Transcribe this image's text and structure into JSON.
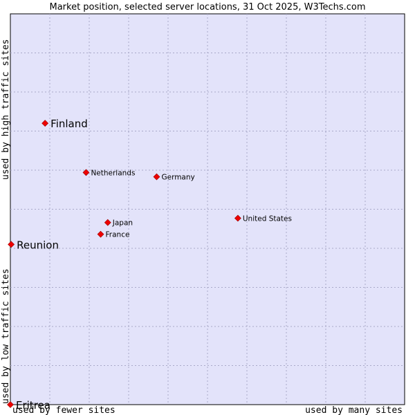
{
  "chart_data": {
    "type": "scatter",
    "title": "Market position, selected server locations, 31 Oct 2025, W3Techs.com",
    "xlabel_left": "used by fewer sites",
    "xlabel_right": "used by many sites",
    "ylabel_top": "used by high traffic sites",
    "ylabel_bottom": "used by low traffic sites",
    "xlim": [
      0,
      100
    ],
    "ylim": [
      0,
      100
    ],
    "grid": true,
    "plot_bg": "#e3e3fa",
    "grid_color": "#a8a8c8",
    "point_color": "#ee0000",
    "points": [
      {
        "label": "Finland",
        "x": 8.8,
        "y": 72.0,
        "emphasis": true
      },
      {
        "label": "Netherlands",
        "x": 19.2,
        "y": 59.4,
        "emphasis": false
      },
      {
        "label": "Germany",
        "x": 37.1,
        "y": 58.3,
        "emphasis": false
      },
      {
        "label": "United States",
        "x": 57.7,
        "y": 47.7,
        "emphasis": false
      },
      {
        "label": "Japan",
        "x": 24.7,
        "y": 46.6,
        "emphasis": false
      },
      {
        "label": "France",
        "x": 22.9,
        "y": 43.6,
        "emphasis": false
      },
      {
        "label": "Reunion",
        "x": 0.2,
        "y": 41.0,
        "emphasis": true
      },
      {
        "label": "Eritrea",
        "x": 0.0,
        "y": 0.0,
        "emphasis": true
      }
    ]
  }
}
